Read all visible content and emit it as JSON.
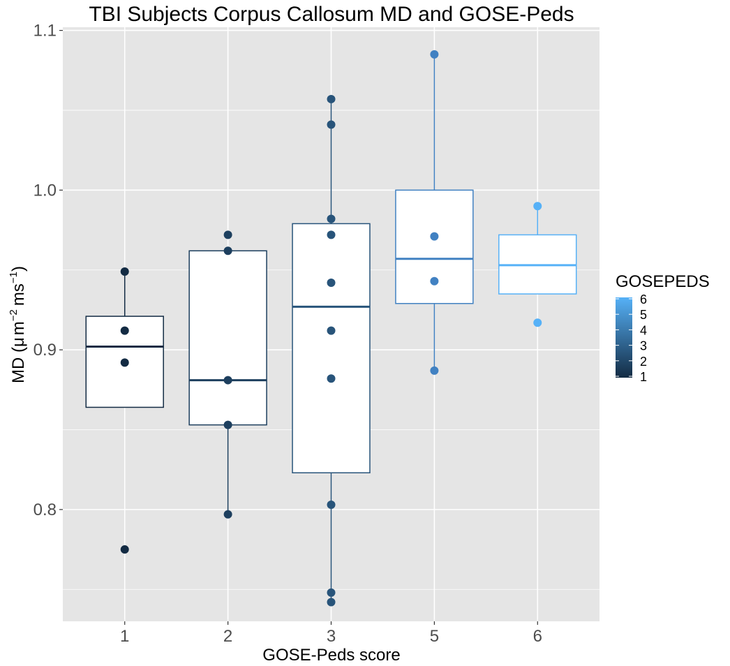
{
  "chart_data": {
    "type": "box",
    "title": "TBI Subjects Corpus Callosum MD and GOSE-Peds",
    "xlabel": "GOSE-Peds score",
    "ylabel": {
      "prefix": "MD (",
      "mu": "μ",
      "m": "m",
      "exp1": "−2",
      "ms": "ms",
      "exp2": "−1",
      "suffix": ")"
    },
    "ylim": [
      0.73,
      1.102
    ],
    "y_ticks": [
      {
        "value": 0.8,
        "label": "0.8"
      },
      {
        "value": 0.9,
        "label": "0.9"
      },
      {
        "value": 1.0,
        "label": "1.0"
      },
      {
        "value": 1.1,
        "label": "1.1"
      }
    ],
    "y_minor_ticks": [
      0.75,
      0.85,
      0.95,
      1.05
    ],
    "categories": [
      "1",
      "2",
      "3",
      "5",
      "6"
    ],
    "boxes": [
      {
        "category": "1",
        "score": 1,
        "q1": 0.864,
        "median": 0.902,
        "q3": 0.921,
        "whisker_low": 0.864,
        "whisker_high": 0.949,
        "color": "#132B43"
      },
      {
        "category": "2",
        "score": 2,
        "q1": 0.853,
        "median": 0.881,
        "q3": 0.962,
        "whisker_low": 0.797,
        "whisker_high": 0.962,
        "color": "#1D3F5E"
      },
      {
        "category": "3",
        "score": 3,
        "q1": 0.823,
        "median": 0.927,
        "q3": 0.979,
        "whisker_low": 0.742,
        "whisker_high": 1.057,
        "color": "#28547A"
      },
      {
        "category": "5",
        "score": 5,
        "q1": 0.929,
        "median": 0.957,
        "q3": 1.0,
        "whisker_low": 0.887,
        "whisker_high": 1.085,
        "color": "#4181C2"
      },
      {
        "category": "6",
        "score": 6,
        "q1": 0.935,
        "median": 0.953,
        "q3": 0.972,
        "whisker_low": 0.935,
        "whisker_high": 0.99,
        "color": "#56B1F7"
      }
    ],
    "points": [
      {
        "category": "1",
        "score": 1,
        "values": [
          0.949,
          0.912,
          0.892,
          0.775
        ]
      },
      {
        "category": "2",
        "score": 2,
        "values": [
          0.972,
          0.962,
          0.881,
          0.853,
          0.797
        ]
      },
      {
        "category": "3",
        "score": 3,
        "values": [
          1.057,
          1.041,
          0.982,
          0.972,
          0.942,
          0.912,
          0.882,
          0.803,
          0.748,
          0.742
        ]
      },
      {
        "category": "5",
        "score": 5,
        "values": [
          1.085,
          0.971,
          0.943,
          0.887
        ]
      },
      {
        "category": "6",
        "score": 6,
        "values": [
          0.99,
          0.917
        ]
      }
    ],
    "legend": {
      "title": "GOSEPEDS",
      "placement": "right",
      "range": [
        1,
        6
      ],
      "low_color": "#132B43",
      "high_color": "#56B1F7",
      "labels": [
        "6",
        "5",
        "4",
        "3",
        "2",
        "1"
      ]
    },
    "colors": {
      "panel_background": "#E5E5E5",
      "grid": "#FFFFFF",
      "box_fill": "#FFFFFF"
    }
  }
}
